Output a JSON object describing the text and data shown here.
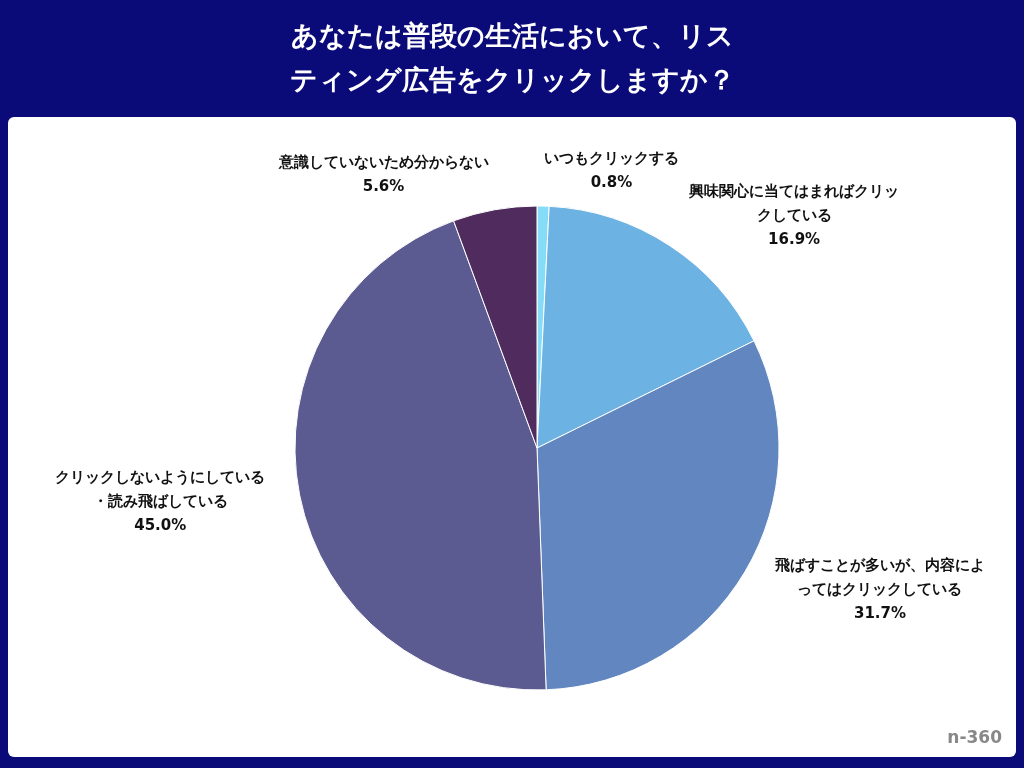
{
  "chart_data": {
    "type": "pie",
    "title": "あなたは普段の生活において、リスティング広告をクリックしますか？",
    "categories": [
      "いつもクリックする",
      "興味関心に当てはまればクリックしている",
      "飛ばすことが多いが、内容によってはクリックしている",
      "クリックしないようにしている・読み飛ばしている",
      "意識していないため分からない"
    ],
    "values": [
      0.8,
      16.9,
      31.7,
      45.0,
      5.6
    ],
    "colors": [
      "#86dcf6",
      "#6cb2e2",
      "#6287c0",
      "#5c5b91",
      "#4f2b5e"
    ],
    "value_labels": [
      "0.8%",
      "16.9%",
      "31.7%",
      "45.0%",
      "5.6%"
    ],
    "annotations": [
      "n-360"
    ]
  }
}
